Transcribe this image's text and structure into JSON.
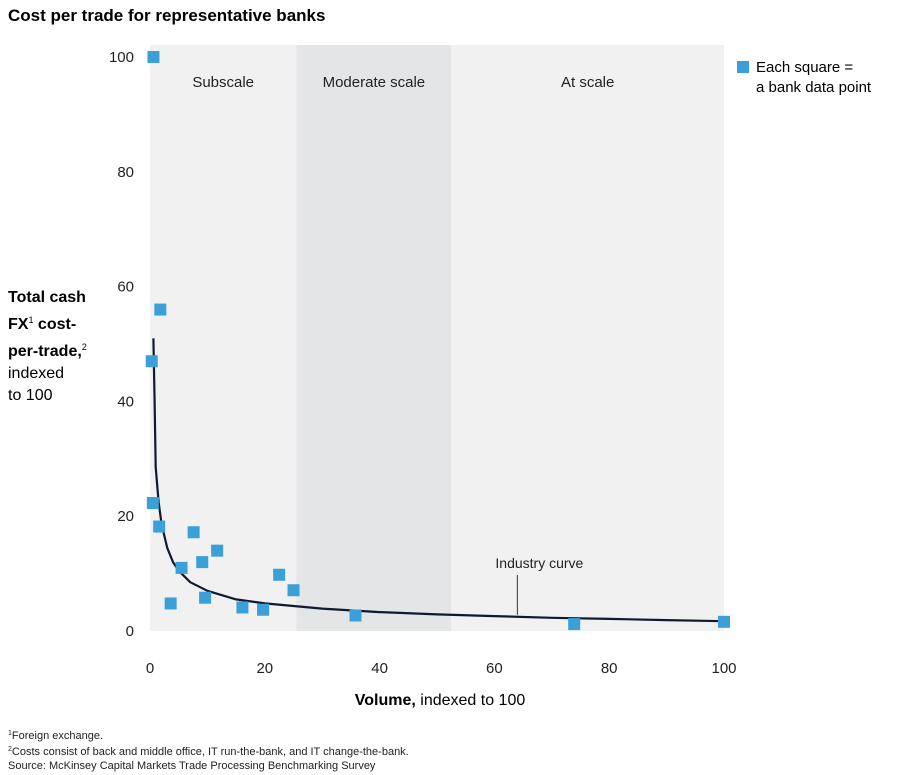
{
  "title": "Cost per trade for representative banks",
  "y_axis_label": {
    "bold_lines": [
      "Total cash",
      "FX",
      "cost-",
      "per-trade,"
    ],
    "sup1": "1",
    "sup2": "2",
    "rest": [
      "indexed",
      "to 100"
    ]
  },
  "x_axis_label": {
    "bold": "Volume,",
    "rest": " indexed to 100"
  },
  "legend": {
    "text_line1": "Each square =",
    "text_line2": "a bank data point",
    "color": "#3b9fd8"
  },
  "footnotes": [
    {
      "sup": "1",
      "text": "Foreign exchange."
    },
    {
      "sup": "2",
      "text": "Costs consist of back and middle office, IT run-the-bank, and IT change-the-bank."
    },
    {
      "sup": "",
      "text": "Source: McKinsey Capital Markets Trade Processing Benchmarking Survey"
    }
  ],
  "chart_data": {
    "type": "scatter",
    "title": "Cost per trade for representative banks",
    "xlabel": "Volume, indexed to 100",
    "ylabel": "Total cash FX cost-per-trade, indexed to 100",
    "xlim": [
      0,
      100
    ],
    "ylim": [
      0,
      100
    ],
    "x_ticks": [
      0,
      20,
      40,
      60,
      80,
      100
    ],
    "y_ticks": [
      0,
      20,
      40,
      60,
      80,
      100
    ],
    "grid": false,
    "legend_position": "top-right",
    "regions": [
      {
        "label": "Subscale",
        "x_start": 0,
        "x_end": 25.5,
        "color": "#f1f1f2"
      },
      {
        "label": "Moderate scale",
        "x_start": 25.5,
        "x_end": 52.5,
        "color": "#e4e5e7"
      },
      {
        "label": "At scale",
        "x_start": 52.5,
        "x_end": 100,
        "color": "#f1f1f2"
      }
    ],
    "series": [
      {
        "name": "Each square = a bank data point",
        "color": "#3b9fd8",
        "x": [
          0.6,
          0.3,
          1.8,
          0.5,
          1.6,
          7.6,
          11.7,
          9.1,
          5.5,
          22.5,
          25,
          3.6,
          9.6,
          16.1,
          19.7,
          35.8,
          73.9,
          100
        ],
        "y": [
          100,
          47,
          56,
          22.3,
          18.2,
          17.2,
          14,
          12,
          11,
          9.8,
          7.1,
          4.8,
          5.8,
          4.1,
          3.7,
          2.7,
          1.2,
          1.6
        ]
      }
    ],
    "curve": {
      "label": "Industry curve",
      "color": "#0f1b2d",
      "x": [
        0.6,
        0.8,
        1,
        1.5,
        2,
        3,
        4,
        5,
        7,
        10,
        15,
        20,
        30,
        40,
        50,
        60,
        70,
        80,
        90,
        100
      ],
      "y": [
        51,
        40,
        28.5,
        22.5,
        18.7,
        14.5,
        12,
        10.5,
        8.5,
        7,
        5.5,
        4.8,
        3.9,
        3.3,
        2.9,
        2.6,
        2.3,
        2.1,
        1.9,
        1.7
      ],
      "annotation_x": 64
    }
  }
}
